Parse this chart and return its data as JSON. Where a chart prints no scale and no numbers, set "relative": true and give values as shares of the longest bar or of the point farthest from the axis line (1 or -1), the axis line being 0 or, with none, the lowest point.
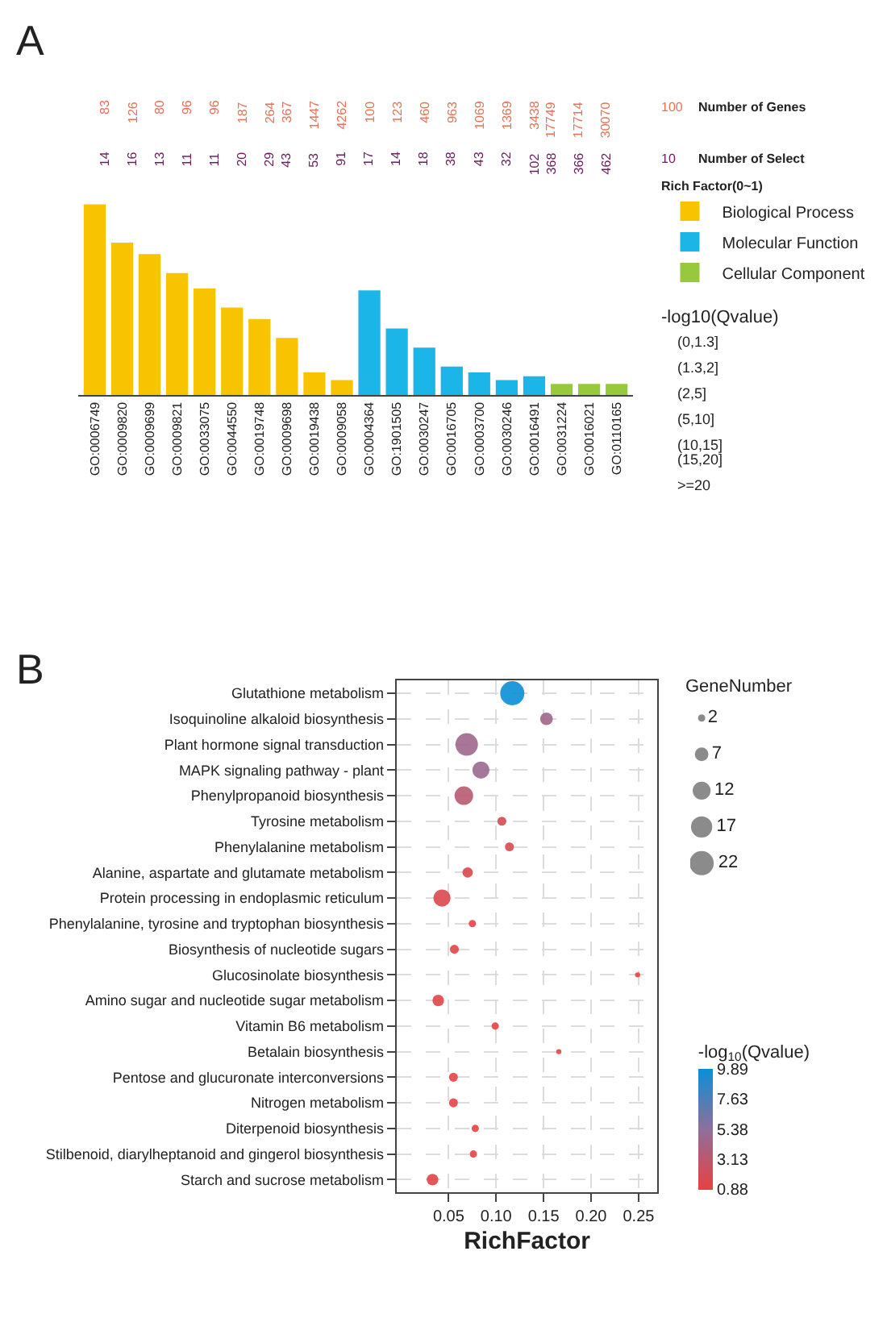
{
  "chart_data": [
    {
      "type": "bar",
      "title": "A",
      "relative": true,
      "legend": "right",
      "categories": [
        "GO:0006749",
        "GO:0009820",
        "GO:0009699",
        "GO:0009821",
        "GO:0033075",
        "GO:0044550",
        "GO:0019748",
        "GO:0009698",
        "GO:0019438",
        "GO:0009058",
        "GO:0004364",
        "GO:1901505",
        "GO:0030247",
        "GO:0016705",
        "GO:0003700",
        "GO:0030246",
        "GO:0016491",
        "GO:0031224",
        "GO:0016021",
        "GO:0110165"
      ],
      "series": [
        {
          "name": "Biological Process",
          "color": "#f8c300",
          "values": [
            1,
            0.8,
            0.74,
            0.64,
            0.56,
            0.46,
            0.4,
            0.3,
            0.12,
            0.08,
            null,
            null,
            null,
            null,
            null,
            null,
            null,
            null,
            null,
            null
          ]
        },
        {
          "name": "Molecular Function",
          "color": "#1cb5e8",
          "values": [
            null,
            null,
            null,
            null,
            null,
            null,
            null,
            null,
            null,
            null,
            0.55,
            0.35,
            0.25,
            0.15,
            0.12,
            0.08,
            0.1,
            null,
            null,
            null
          ]
        },
        {
          "name": "Cellular Component",
          "color": "#98c93c",
          "values": [
            null,
            null,
            null,
            null,
            null,
            null,
            null,
            null,
            null,
            null,
            null,
            null,
            null,
            null,
            null,
            null,
            null,
            0.06,
            0.06,
            0.06
          ]
        }
      ],
      "annotations": [
        "83",
        "126",
        "80",
        "96",
        "96",
        "187",
        "264",
        "367",
        "1447",
        "4262",
        "100",
        "123",
        "460",
        "963",
        "1069",
        "1369",
        "3438",
        "17749",
        "17714",
        "30070",
        "14",
        "16",
        "13",
        "11",
        "11",
        "20",
        "29",
        "43",
        "53",
        "91",
        "17",
        "14",
        "18",
        "38",
        "43",
        "32",
        "102",
        "368",
        "366",
        "462",
        "100",
        "Number of Genes",
        "10",
        "Number of Select",
        "Rich Factor(0~1)",
        "-log10(Qvalue)",
        "(0,1.3]",
        "(1.3,2]",
        "(2,5]",
        "(5,10]",
        "(10,15]",
        "(15,20]",
        ">=20"
      ]
    },
    {
      "type": "bubble",
      "title": "B",
      "orientation": "horizontal",
      "xlabel": "RichFactor",
      "legend_title": "GeneNumber",
      "clabel": "-log$_{10}$(Qvalue)",
      "grid": true,
      "categories": [
        "Glutathione metabolism",
        "Isoquinoline alkaloid biosynthesis",
        "Plant hormone signal transduction",
        "MAPK signaling pathway - plant",
        "Phenylpropanoid biosynthesis",
        "Tyrosine metabolism",
        "Phenylalanine metabolism",
        "Alanine, aspartate and glutamate metabolism",
        "Protein processing in endoplasmic reticulum",
        "Phenylalanine, tyrosine and tryptophan biosynthesis",
        "Biosynthesis of nucleotide sugars",
        "Glucosinolate biosynthesis",
        "Amino sugar and nucleotide sugar metabolism",
        "Vitamin B6 metabolism",
        "Betalain biosynthesis",
        "Pentose and glucuronate interconversions",
        "Nitrogen metabolism",
        "Diterpenoid biosynthesis",
        "Stilbenoid, diarylheptanoid and gingerol biosynthesis",
        "Starch and sucrose metabolism"
      ],
      "values": [
        0.117,
        0.153,
        0.069,
        0.084,
        0.066,
        0.106,
        0.114,
        0.07,
        0.043,
        0.075,
        0.056,
        0.249,
        0.039,
        0.099,
        0.166,
        0.055,
        0.055,
        0.078,
        0.076,
        0.033
      ],
      "sizes": [
        22,
        6,
        19,
        11,
        13,
        3,
        3,
        4,
        11,
        2,
        3,
        1,
        5,
        2,
        1,
        3,
        3,
        2,
        2,
        5
      ],
      "size_legend": [
        2,
        7,
        12,
        17,
        22
      ],
      "cvalues": [
        9.89,
        4.5,
        4.6,
        4.8,
        3.3,
        1.8,
        1.6,
        1.4,
        1.6,
        1.1,
        1.2,
        0.88,
        1.3,
        1.0,
        1.0,
        1.1,
        1.1,
        1.0,
        1.0,
        1.3
      ],
      "clim": [
        0.88,
        9.89
      ],
      "cticks": [
        0.88,
        3.13,
        5.38,
        7.63,
        9.89
      ],
      "xlim": [
        -0.005,
        0.27
      ],
      "xticks": [
        0.05,
        {
          "value": 0.1,
          "label": "0.10"
        },
        0.15,
        {
          "value": 0.2,
          "label": "0.20"
        },
        0.25
      ]
    }
  ]
}
